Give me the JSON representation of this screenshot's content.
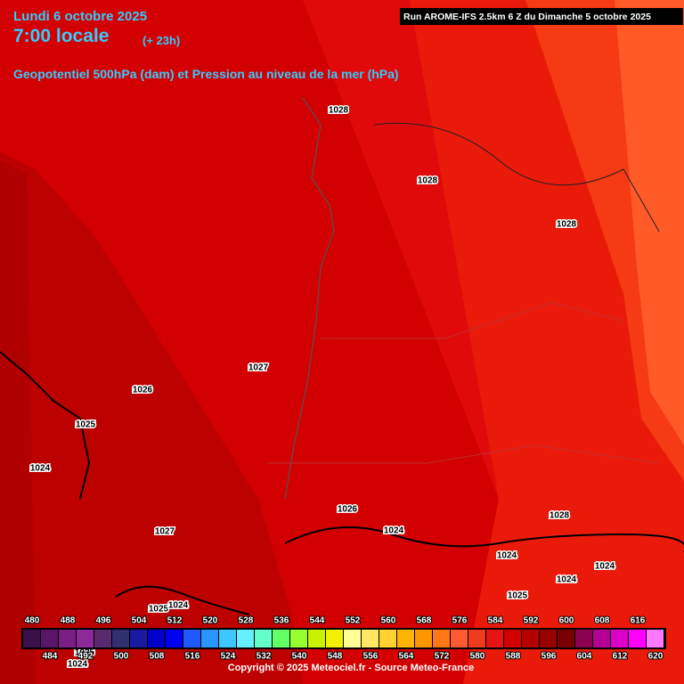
{
  "header": {
    "date": "Lundi 6 octobre 2025",
    "time": "7:00 locale",
    "lead": "(+ 23h)",
    "description": "Geopotentiel 500hPa (dam) et Pression au niveau de la mer (hPa)",
    "run": "Run AROME-IFS 2.5km 6 Z du Dimanche 5 octobre 2025"
  },
  "isobar_labels": [
    1028,
    1028,
    1028,
    1027,
    1026,
    1025,
    1024,
    1027,
    1026,
    1024,
    1028,
    1024,
    1024,
    1024,
    1025,
    1025,
    1024,
    1025,
    1024
  ],
  "colorbar": [
    {
      "value": 480,
      "color": "#3b0f4a"
    },
    {
      "value": 484,
      "color": "#5a1468"
    },
    {
      "value": 488,
      "color": "#7a1e85"
    },
    {
      "value": 492,
      "color": "#8c2a9c"
    },
    {
      "value": 496,
      "color": "#5a2a6e"
    },
    {
      "value": 500,
      "color": "#303070"
    },
    {
      "value": 504,
      "color": "#1a1aa0"
    },
    {
      "value": 508,
      "color": "#0000c8"
    },
    {
      "value": 512,
      "color": "#0000f0"
    },
    {
      "value": 516,
      "color": "#1e5aff"
    },
    {
      "value": 520,
      "color": "#2896ff"
    },
    {
      "value": 524,
      "color": "#3cc8ff"
    },
    {
      "value": 528,
      "color": "#64f0ff"
    },
    {
      "value": 532,
      "color": "#64ffc8"
    },
    {
      "value": 536,
      "color": "#64ff64"
    },
    {
      "value": 540,
      "color": "#96ff32"
    },
    {
      "value": 544,
      "color": "#c8f000"
    },
    {
      "value": 548,
      "color": "#f0f000"
    },
    {
      "value": 552,
      "color": "#ffff96"
    },
    {
      "value": 556,
      "color": "#ffe664"
    },
    {
      "value": 560,
      "color": "#ffd232"
    },
    {
      "value": 564,
      "color": "#ffb400"
    },
    {
      "value": 568,
      "color": "#ff9600"
    },
    {
      "value": 572,
      "color": "#ff7814"
    },
    {
      "value": 576,
      "color": "#ff5a32"
    },
    {
      "value": 580,
      "color": "#f03c1e"
    },
    {
      "value": 584,
      "color": "#e61414"
    },
    {
      "value": 588,
      "color": "#d20000"
    },
    {
      "value": 592,
      "color": "#b40000"
    },
    {
      "value": 596,
      "color": "#960000"
    },
    {
      "value": 600,
      "color": "#780000"
    },
    {
      "value": 604,
      "color": "#8c0050"
    },
    {
      "value": 608,
      "color": "#b40096"
    },
    {
      "value": 612,
      "color": "#dc00c8"
    },
    {
      "value": 616,
      "color": "#ff00ff"
    },
    {
      "value": 620,
      "color": "#ff78ff"
    }
  ],
  "footer": {
    "copyright": "Copyright © 2025 Meteociel.fr - Source Meteo-France"
  }
}
